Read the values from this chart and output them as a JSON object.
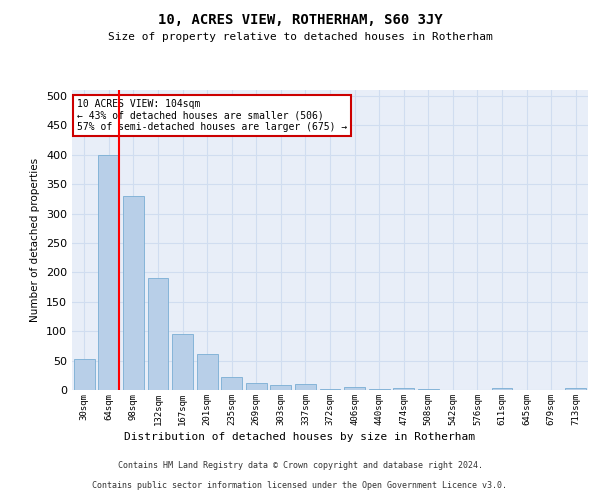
{
  "title": "10, ACRES VIEW, ROTHERHAM, S60 3JY",
  "subtitle": "Size of property relative to detached houses in Rotherham",
  "xlabel": "Distribution of detached houses by size in Rotherham",
  "ylabel": "Number of detached properties",
  "categories": [
    "30sqm",
    "64sqm",
    "98sqm",
    "132sqm",
    "167sqm",
    "201sqm",
    "235sqm",
    "269sqm",
    "303sqm",
    "337sqm",
    "372sqm",
    "406sqm",
    "440sqm",
    "474sqm",
    "508sqm",
    "542sqm",
    "576sqm",
    "611sqm",
    "645sqm",
    "679sqm",
    "713sqm"
  ],
  "values": [
    52,
    400,
    330,
    190,
    95,
    62,
    22,
    12,
    9,
    10,
    1,
    5,
    1,
    4,
    1,
    0,
    0,
    3,
    0,
    0,
    4
  ],
  "bar_color": "#b8cfe8",
  "bar_edge_color": "#7aaed4",
  "grid_color": "#d0ddf0",
  "background_color": "#e8eef8",
  "annotation_text": "10 ACRES VIEW: 104sqm\n← 43% of detached houses are smaller (506)\n57% of semi-detached houses are larger (675) →",
  "annotation_box_color": "#ffffff",
  "annotation_box_edge": "#cc0000",
  "ylim": [
    0,
    510
  ],
  "yticks": [
    0,
    50,
    100,
    150,
    200,
    250,
    300,
    350,
    400,
    450,
    500
  ],
  "footer_line1": "Contains HM Land Registry data © Crown copyright and database right 2024.",
  "footer_line2": "Contains public sector information licensed under the Open Government Licence v3.0."
}
